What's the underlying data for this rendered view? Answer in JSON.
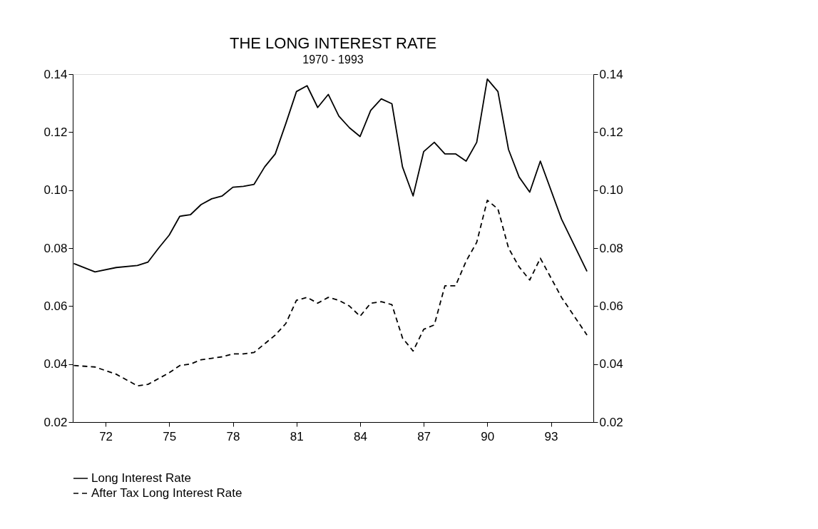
{
  "chart_data": {
    "type": "line",
    "title": "THE LONG INTEREST RATE",
    "subtitle": "1970 - 1993",
    "xlim": [
      70.45,
      95.0
    ],
    "xticks": [
      72,
      75,
      78,
      81,
      84,
      87,
      90,
      93
    ],
    "ylim": [
      0.02,
      0.14
    ],
    "yticks": [
      0.02,
      0.04,
      0.06,
      0.08,
      {
        "value": 0.1,
        "label": "0.10"
      },
      0.12,
      0.14
    ],
    "y2lim": [
      0.02,
      0.14
    ],
    "y2ticks": [
      0.02,
      0.04,
      0.06,
      0.08,
      {
        "value": 0.1,
        "label": "0.10"
      },
      0.12,
      0.14
    ],
    "grid": false,
    "legend": "bottom left",
    "marker": "none",
    "x": [
      70.5,
      71.5,
      72.5,
      73.5,
      74,
      74.5,
      75,
      75.5,
      76,
      76.5,
      77,
      77.5,
      78,
      78.5,
      79,
      79.5,
      80,
      80.5,
      81,
      81.5,
      82,
      82.5,
      83,
      83.5,
      84,
      84.5,
      85,
      85.5,
      86,
      86.5,
      87,
      87.5,
      88,
      88.5,
      89,
      89.5,
      90,
      90.5,
      91,
      91.5,
      92,
      92.5,
      93.5,
      94.7
    ],
    "series": [
      {
        "name": "Long Interest Rate",
        "color": "#000000",
        "line_style": "solid",
        "values": [
          0.0747,
          0.0718,
          0.0733,
          0.074,
          0.0752,
          0.08,
          0.0845,
          0.091,
          0.0915,
          0.095,
          0.097,
          0.098,
          0.101,
          0.1013,
          0.102,
          0.108,
          0.1125,
          0.123,
          0.134,
          0.136,
          0.1285,
          0.133,
          0.1255,
          0.1215,
          0.1185,
          0.1275,
          0.1315,
          0.1298,
          0.108,
          0.098,
          0.1133,
          0.1165,
          0.1125,
          0.1125,
          0.11,
          0.1165,
          0.1383,
          0.134,
          0.114,
          0.1045,
          0.0993,
          0.11,
          0.09,
          0.072
        ]
      },
      {
        "name": "After Tax Long Interest Rate",
        "color": "#000000",
        "line_style": "dashed",
        "values": [
          0.0395,
          0.039,
          0.0365,
          0.0325,
          0.033,
          0.035,
          0.037,
          0.0395,
          0.04,
          0.0415,
          0.042,
          0.0425,
          0.0435,
          0.0435,
          0.044,
          0.047,
          0.05,
          0.054,
          0.062,
          0.063,
          0.061,
          0.063,
          0.062,
          0.06,
          0.0565,
          0.061,
          0.0615,
          0.0605,
          0.049,
          0.0445,
          0.052,
          0.0535,
          0.067,
          0.067,
          0.0755,
          0.082,
          0.0965,
          0.0935,
          0.08,
          0.0735,
          0.069,
          0.0765,
          0.063,
          0.05
        ]
      }
    ]
  }
}
